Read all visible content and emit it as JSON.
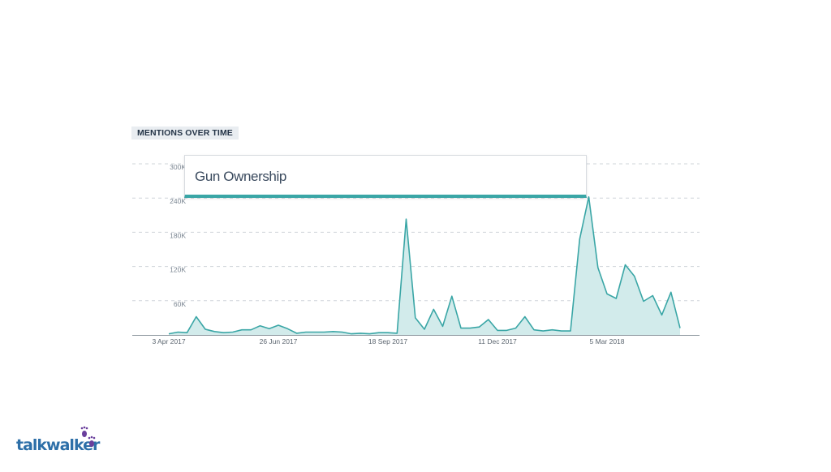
{
  "section": {
    "label": "MENTIONS OVER TIME"
  },
  "brand": {
    "name": "talkwalker",
    "logo_icon": "footprints-icon",
    "color": "#2d6fa8",
    "feet_color": "#6a3f9c"
  },
  "chart_data": {
    "type": "area",
    "title": "",
    "xlabel": "",
    "ylabel": "",
    "ylim": [
      0,
      300000
    ],
    "y_ticks": [
      {
        "value": 60000,
        "label": "60K"
      },
      {
        "value": 120000,
        "label": "120K"
      },
      {
        "value": 180000,
        "label": "180K"
      },
      {
        "value": 240000,
        "label": "240K"
      },
      {
        "value": 300000,
        "label": "300K"
      }
    ],
    "x_ticks": [
      {
        "index": 0,
        "label": "3 Apr 2017"
      },
      {
        "index": 12,
        "label": "26 Jun 2017"
      },
      {
        "index": 24,
        "label": "18 Sep 2017"
      },
      {
        "index": 36,
        "label": "11 Dec 2017"
      },
      {
        "index": 48,
        "label": "5 Mar 2018"
      }
    ],
    "grid": true,
    "legend_position": "top",
    "series": [
      {
        "name": "Gun Ownership",
        "color": "#3aa6a6",
        "fill": "#d2ebeb",
        "values": [
          2000,
          5000,
          4000,
          32000,
          10000,
          6000,
          4000,
          5000,
          9000,
          9000,
          16000,
          11000,
          17000,
          11000,
          3000,
          5000,
          5000,
          5000,
          6000,
          5000,
          2000,
          3000,
          2000,
          4000,
          4000,
          3000,
          203000,
          30000,
          10000,
          45000,
          15000,
          68000,
          12000,
          12000,
          14000,
          27000,
          8000,
          8000,
          12000,
          32000,
          9000,
          7000,
          9000,
          7000,
          7000,
          168000,
          242000,
          118000,
          72000,
          64000,
          123000,
          103000,
          59000,
          69000,
          35000,
          75000,
          12000
        ]
      }
    ]
  }
}
